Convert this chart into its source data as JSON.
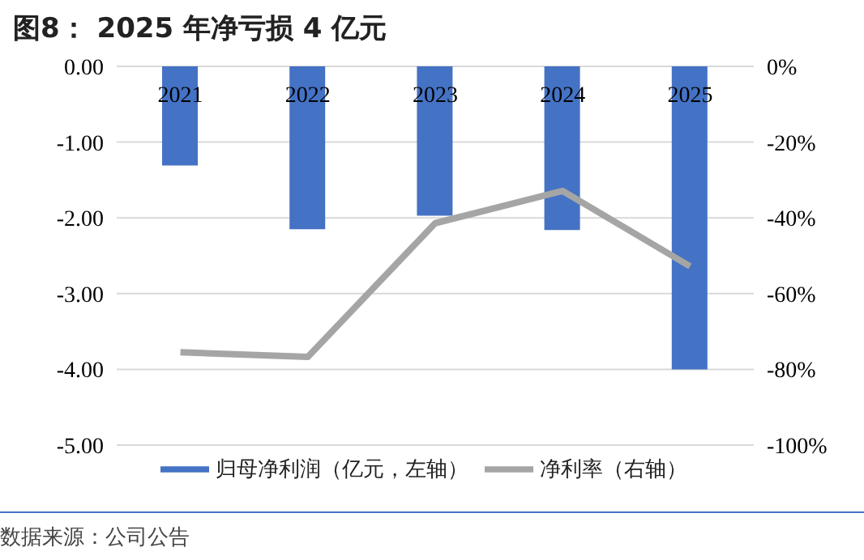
{
  "chart_data": {
    "type": "bar",
    "title": "图8： 2025 年净亏损 4 亿元",
    "categories": [
      "2021",
      "2022",
      "2023",
      "2024",
      "2025"
    ],
    "series": [
      {
        "name": "归母净利润（亿元，左轴）",
        "color": "#4472c4",
        "values": [
          -1.31,
          -2.15,
          -1.97,
          -2.16,
          -4.0
        ]
      },
      {
        "name": "净利率（右轴）",
        "type": "line",
        "axis": "y2",
        "color": "#a5a5a5",
        "values": [
          -75.5,
          -76.7,
          -41.4,
          -32.9,
          -52.8
        ]
      }
    ],
    "ylim": [
      -5,
      0
    ],
    "yticks": [
      {
        "value": -5,
        "label": "-5.00"
      },
      {
        "value": -4,
        "label": "-4.00"
      },
      {
        "value": -3,
        "label": "-3.00"
      },
      {
        "value": -2,
        "label": "-2.00"
      },
      {
        "value": -1,
        "label": "-1.00"
      },
      {
        "value": 0,
        "label": "0.00"
      }
    ],
    "y2lim": [
      -100,
      0
    ],
    "y2ticks": [
      {
        "value": -100,
        "label": "-100%"
      },
      {
        "value": -80,
        "label": "-80%"
      },
      {
        "value": -60,
        "label": "-60%"
      },
      {
        "value": -40,
        "label": "-40%"
      },
      {
        "value": -20,
        "label": "-20%"
      },
      {
        "value": 0,
        "label": "0%"
      }
    ],
    "grid": "y",
    "legend": "bottom",
    "marker": "none",
    "line_style": "solid",
    "annotations": [
      "数据来源：公司公告"
    ]
  }
}
